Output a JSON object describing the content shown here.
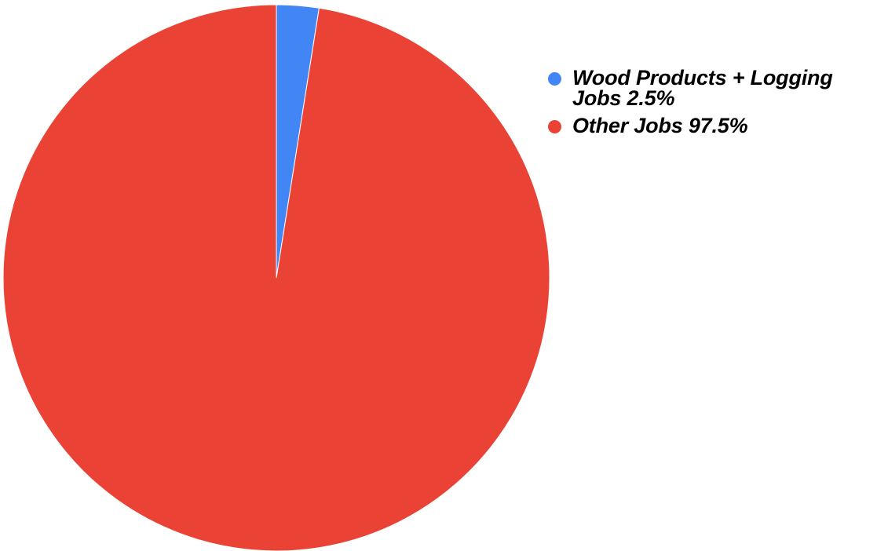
{
  "chart_data": {
    "type": "pie",
    "start_angle_deg": 0,
    "direction": "clockwise",
    "legend_position": "right",
    "slices": [
      {
        "label": "Wood Products + Logging Jobs 2.5%",
        "value": 2.5,
        "color": "#4285f4"
      },
      {
        "label": "Other Jobs 97.5%",
        "value": 97.5,
        "color": "#ea4335"
      }
    ]
  }
}
